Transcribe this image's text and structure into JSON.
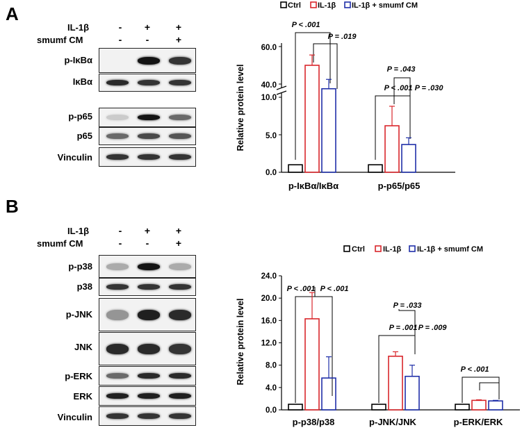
{
  "panels": {
    "a": {
      "letter": "A",
      "treatments": {
        "rows": [
          {
            "label": "IL-1β",
            "signs": [
              "-",
              "+",
              "+"
            ]
          },
          {
            "label": "smumf CM",
            "signs": [
              "-",
              "-",
              "+"
            ]
          }
        ]
      },
      "blots": [
        {
          "label": "p-IκBα",
          "intensity": [
            0.0,
            1.0,
            0.85
          ]
        },
        {
          "label": "IκBα",
          "intensity": [
            0.9,
            0.85,
            0.85
          ]
        },
        {
          "label": "p-p65",
          "intensity": [
            0.15,
            1.0,
            0.6
          ]
        },
        {
          "label": "p65",
          "intensity": [
            0.6,
            0.75,
            0.7
          ]
        },
        {
          "label": "Vinculin",
          "intensity": [
            0.85,
            0.85,
            0.85
          ]
        }
      ]
    },
    "b": {
      "letter": "B",
      "treatments": {
        "rows": [
          {
            "label": "IL-1β",
            "signs": [
              "-",
              "+",
              "+"
            ]
          },
          {
            "label": "smumf CM",
            "signs": [
              "-",
              "-",
              "+"
            ]
          }
        ]
      },
      "blots": [
        {
          "label": "p-p38",
          "intensity": [
            0.3,
            1.0,
            0.3
          ]
        },
        {
          "label": "p38",
          "intensity": [
            0.85,
            0.85,
            0.85
          ]
        },
        {
          "label": "p-JNK",
          "intensity": [
            0.4,
            0.95,
            0.9
          ]
        },
        {
          "label": "JNK",
          "intensity": [
            0.9,
            0.9,
            0.85
          ]
        },
        {
          "label": "p-ERK",
          "intensity": [
            0.6,
            0.9,
            0.9
          ]
        },
        {
          "label": "ERK",
          "intensity": [
            0.95,
            0.95,
            0.95
          ]
        },
        {
          "label": "Vinculin",
          "intensity": [
            0.85,
            0.85,
            0.85
          ]
        }
      ]
    }
  },
  "legend": {
    "items": [
      {
        "name": "Ctrl",
        "color": "#000000"
      },
      {
        "name": "IL-1β",
        "color": "#d9262b"
      },
      {
        "name": "IL-1β + smumf CM",
        "color": "#1f2fa8"
      }
    ]
  },
  "chart_data": [
    {
      "type": "bar",
      "ylabel": "Relative protein level",
      "axis_break": {
        "lower_range": [
          0,
          10
        ],
        "upper_range": [
          40,
          60
        ]
      },
      "yticks": [
        "0.0",
        "5.0",
        "10.0",
        "40.0",
        "60.0"
      ],
      "categories": [
        "p-IκBα/IκBα",
        "p-p65/p65"
      ],
      "series": [
        {
          "name": "Ctrl",
          "values": [
            1.0,
            1.0
          ],
          "errors": [
            0,
            0
          ]
        },
        {
          "name": "IL-1β",
          "values": [
            50.0,
            6.2
          ],
          "errors": [
            5.5,
            2.6
          ]
        },
        {
          "name": "IL-1β + smumf CM",
          "values": [
            37.5,
            3.7
          ],
          "errors": [
            5.0,
            0.9
          ]
        }
      ],
      "annotations": [
        "P < .001",
        "P = .019",
        "P = .043",
        "P < .001",
        "P = .030"
      ]
    },
    {
      "type": "bar",
      "ylabel": "Relative protein level",
      "ylim": [
        0,
        24
      ],
      "yticks": [
        "0.0",
        "4.0",
        "8.0",
        "12.0",
        "16.0",
        "20.0",
        "24.0"
      ],
      "categories": [
        "p-p38/p38",
        "p-JNK/JNK",
        "p-ERK/ERK"
      ],
      "series": [
        {
          "name": "Ctrl",
          "values": [
            1.0,
            1.0,
            1.0
          ],
          "errors": [
            0,
            0,
            0
          ]
        },
        {
          "name": "IL-1β",
          "values": [
            16.3,
            9.6,
            1.7
          ],
          "errors": [
            4.7,
            0.8,
            0.1
          ]
        },
        {
          "name": "IL-1β + smumf CM",
          "values": [
            5.7,
            6.0,
            1.6
          ],
          "errors": [
            3.8,
            2.0,
            0.1
          ]
        }
      ],
      "annotations": [
        "P < .001",
        "P < .001",
        "P = .033",
        "P = .001",
        "P = .009",
        "P < .001"
      ]
    }
  ]
}
